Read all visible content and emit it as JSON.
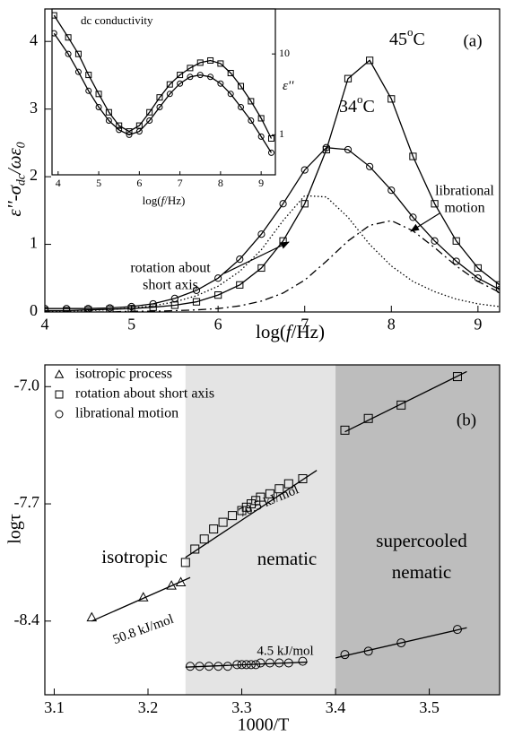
{
  "chart_data": [
    {
      "type": "line",
      "panel_label": "(a)",
      "xlabel": [
        "log(",
        "f",
        "/Hz)"
      ],
      "ylabel": [
        "ε''-σ",
        "dc",
        "/ωε",
        "0"
      ],
      "xlim": [
        4,
        9.25
      ],
      "ylim": [
        0,
        4.48
      ],
      "xticks": [
        4,
        5,
        6,
        7,
        8,
        9
      ],
      "yticks": [
        0,
        1,
        2,
        3,
        4
      ],
      "x": [
        4,
        4.25,
        4.5,
        4.75,
        5,
        5.25,
        5.5,
        5.75,
        6,
        6.25,
        6.5,
        6.75,
        7,
        7.25,
        7.5,
        7.75,
        8,
        8.25,
        8.5,
        8.75,
        9,
        9.25
      ],
      "series": [
        {
          "color": "#000000",
          "marker": "square",
          "line": "solid",
          "values": [
            0.02,
            0.02,
            0.03,
            0.04,
            0.05,
            0.07,
            0.1,
            0.15,
            0.25,
            0.4,
            0.65,
            1.05,
            1.6,
            2.4,
            3.45,
            3.72,
            3.15,
            2.3,
            1.6,
            1.05,
            0.65,
            0.4
          ]
        },
        {
          "color": "#000000",
          "marker": "circle",
          "line": "solid",
          "values": [
            0.05,
            0.05,
            0.05,
            0.06,
            0.08,
            0.12,
            0.2,
            0.32,
            0.5,
            0.78,
            1.15,
            1.6,
            2.1,
            2.43,
            2.4,
            2.15,
            1.8,
            1.4,
            1.05,
            0.75,
            0.5,
            0.33
          ]
        },
        {
          "color": "#000000",
          "line": "dotted",
          "values": [
            0.01,
            0.015,
            0.02,
            0.035,
            0.06,
            0.09,
            0.15,
            0.24,
            0.38,
            0.6,
            0.92,
            1.35,
            1.72,
            1.7,
            1.4,
            1.0,
            0.68,
            0.45,
            0.3,
            0.19,
            0.12,
            0.08
          ]
        },
        {
          "color": "#000000",
          "line": "dashdot",
          "values": [
            0,
            0,
            0,
            0,
            0.01,
            0.01,
            0.02,
            0.03,
            0.05,
            0.09,
            0.16,
            0.28,
            0.47,
            0.75,
            1.05,
            1.28,
            1.35,
            1.2,
            0.95,
            0.68,
            0.45,
            0.29
          ]
        }
      ],
      "annotations": [
        [
          "45",
          "o",
          "C"
        ],
        [
          "34",
          "o",
          "C"
        ],
        [
          "librational",
          "motion"
        ],
        [
          "rotation about",
          "short axis"
        ]
      ]
    },
    {
      "type": "line",
      "title": "dc conductivity",
      "xlabel": [
        "log(",
        "f",
        "/Hz)"
      ],
      "ylabel": [
        "ε''"
      ],
      "log_y": true,
      "xlim": [
        3.85,
        9.35
      ],
      "ylim": [
        0.32,
        36
      ],
      "xticks": [
        4,
        5,
        6,
        7,
        8,
        9
      ],
      "yticks": [
        1,
        10
      ],
      "x": [
        3.9,
        4.25,
        4.5,
        4.75,
        5,
        5.25,
        5.5,
        5.75,
        6,
        6.25,
        6.5,
        6.75,
        7,
        7.25,
        7.5,
        7.75,
        8,
        8.25,
        8.5,
        8.75,
        9,
        9.25
      ],
      "series": [
        {
          "color": "#000000",
          "marker": "square",
          "line": "solid",
          "values": [
            30,
            16,
            10,
            5.5,
            3.2,
            1.9,
            1.3,
            1.1,
            1.3,
            1.9,
            2.9,
            4.2,
            5.5,
            6.7,
            7.8,
            8.3,
            7.6,
            5.8,
            4.0,
            2.6,
            1.6,
            0.9
          ]
        },
        {
          "color": "#000000",
          "marker": "circle",
          "line": "solid",
          "values": [
            18,
            10,
            6,
            3.5,
            2.2,
            1.5,
            1.15,
            1.0,
            1.1,
            1.5,
            2.2,
            3.2,
            4.3,
            5.2,
            5.5,
            5.2,
            4.3,
            3.2,
            2.2,
            1.5,
            0.95,
            0.6
          ]
        }
      ]
    },
    {
      "type": "scatter",
      "panel_label": "(b)",
      "xlabel": "1000/T",
      "ylabel": "logτ",
      "xlim": [
        3.09,
        3.575
      ],
      "ylim": [
        -8.84,
        -6.87
      ],
      "xticks": [
        3.1,
        3.2,
        3.3,
        3.4,
        3.5
      ],
      "yticks": [
        {
          "value": -7.0,
          "label": "-7.0"
        },
        -7.7,
        -8.4
      ],
      "regions": [
        {
          "xlim": [
            3.09,
            3.24
          ],
          "color": "#ffffff",
          "label": [
            "isotropic"
          ]
        },
        {
          "xlim": [
            3.24,
            3.4
          ],
          "color": "#e4e4e4",
          "label": [
            "nematic"
          ]
        },
        {
          "xlim": [
            3.4,
            3.575
          ],
          "color": "#bdbdbd",
          "label": [
            "supercooled",
            "nematic"
          ]
        }
      ],
      "series": [
        {
          "name": "isotropic process",
          "marker": "triangle",
          "color": "#000000",
          "x": [
            3.14,
            3.195,
            3.225,
            3.235
          ],
          "y": [
            -8.38,
            -8.26,
            -8.19,
            -8.17
          ]
        },
        {
          "name": "rotation about short axis",
          "marker": "square",
          "color": "#000000",
          "x": [
            3.24,
            3.25,
            3.26,
            3.27,
            3.28,
            3.29,
            3.3,
            3.305,
            3.31,
            3.315,
            3.32,
            3.33,
            3.34,
            3.35,
            3.365,
            3.41,
            3.435,
            3.47,
            3.53
          ],
          "y": [
            -8.05,
            -7.97,
            -7.91,
            -7.85,
            -7.81,
            -7.77,
            -7.74,
            -7.72,
            -7.7,
            -7.68,
            -7.66,
            -7.64,
            -7.61,
            -7.58,
            -7.55,
            -7.26,
            -7.19,
            -7.11,
            -6.94
          ]
        },
        {
          "name": "librational motion",
          "marker": "circle",
          "color": "#000000",
          "x": [
            3.245,
            3.255,
            3.265,
            3.275,
            3.285,
            3.295,
            3.3,
            3.305,
            3.31,
            3.315,
            3.32,
            3.33,
            3.34,
            3.35,
            3.365,
            3.41,
            3.435,
            3.47,
            3.53
          ],
          "y": [
            -8.67,
            -8.67,
            -8.67,
            -8.67,
            -8.67,
            -8.66,
            -8.66,
            -8.66,
            -8.66,
            -8.66,
            -8.65,
            -8.65,
            -8.65,
            -8.65,
            -8.64,
            -8.6,
            -8.58,
            -8.53,
            -8.45
          ]
        }
      ],
      "fits": [
        {
          "x": [
            3.14,
            3.245
          ],
          "y": [
            -8.4,
            -8.14
          ]
        },
        {
          "x": [
            3.24,
            3.38
          ],
          "y": [
            -8.02,
            -7.5
          ]
        },
        {
          "x": [
            3.41,
            3.54
          ],
          "y": [
            -7.27,
            -6.91
          ]
        },
        {
          "x": [
            3.24,
            3.37
          ],
          "y": [
            -8.675,
            -8.645
          ]
        },
        {
          "x": [
            3.4,
            3.54
          ],
          "y": [
            -8.62,
            -8.44
          ]
        }
      ],
      "annotations": [
        "70.5 kJ/mol",
        "50.8 kJ/mol",
        "4.5 kJ/mol"
      ]
    }
  ]
}
